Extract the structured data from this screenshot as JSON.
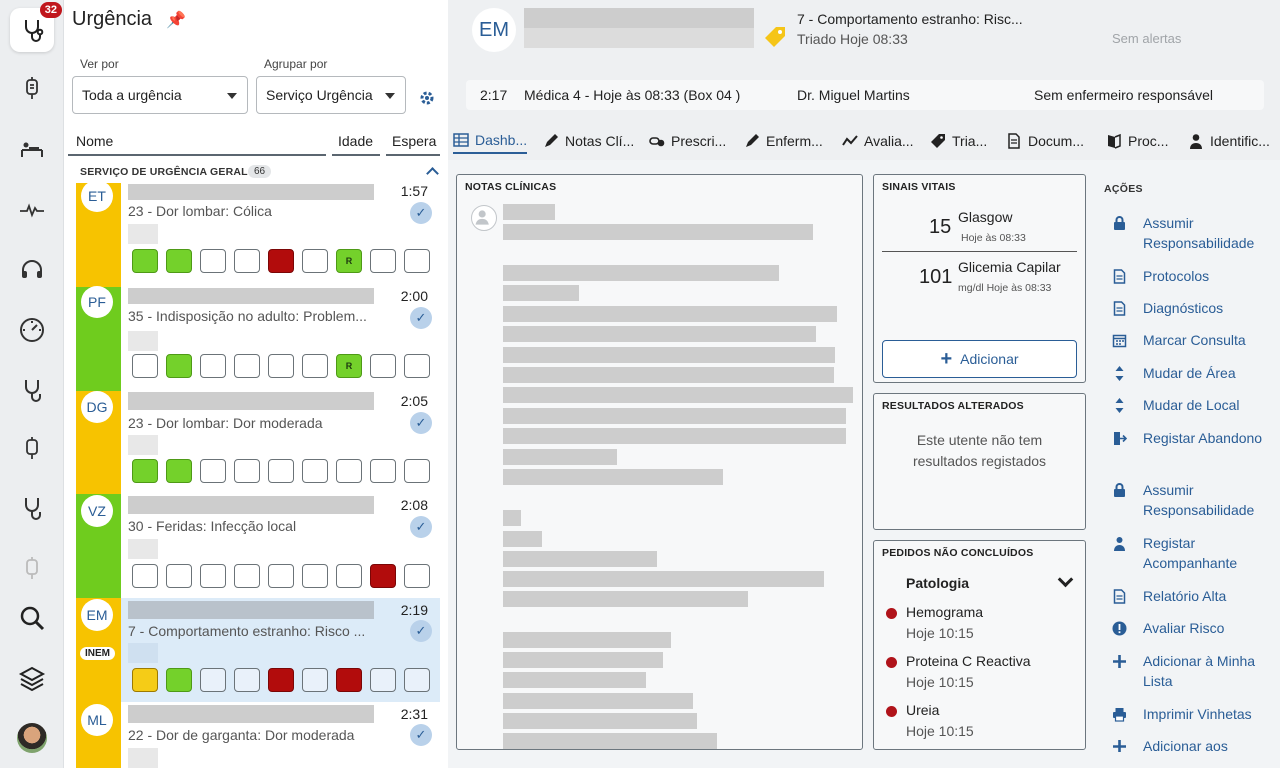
{
  "rail": {
    "badge": "32"
  },
  "list": {
    "title": "Urgência",
    "ver_por_label": "Ver por",
    "ver_por_value": "Toda a urgência",
    "agrupar_label": "Agrupar por",
    "agrupar_value": "Serviço Urgência",
    "col_nome": "Nome",
    "col_idade": "Idade",
    "col_espera": "Espera",
    "group_name": "SERVIÇO DE URGÊNCIA GERAL",
    "group_count": "66",
    "patients": [
      {
        "initials": "ET",
        "diagnosis": "23 - Dor lombar: Cólica",
        "wait": "1:57",
        "priority": "yellow",
        "boxes": [
          "g",
          "g",
          "",
          "",
          "r",
          "",
          "R",
          "",
          " "
        ]
      },
      {
        "initials": "PF",
        "diagnosis": "35 - Indisposição no adulto: Problem...",
        "wait": "2:00",
        "priority": "green",
        "boxes": [
          "",
          "g",
          "",
          "",
          "",
          "",
          "R",
          "",
          ""
        ]
      },
      {
        "initials": "DG",
        "diagnosis": "23 - Dor lombar: Dor moderada",
        "wait": "2:05",
        "priority": "yellow",
        "boxes": [
          "g",
          "g",
          "",
          "",
          "",
          "",
          "",
          "",
          ""
        ]
      },
      {
        "initials": "VZ",
        "diagnosis": "30 - Feridas: Infecção local",
        "wait": "2:08",
        "priority": "green",
        "boxes": [
          "",
          "",
          "",
          "",
          "",
          "",
          "",
          "r",
          ""
        ]
      },
      {
        "initials": "EM",
        "badge": "INEM",
        "diagnosis": "7 - Comportamento estranho: Risco ...",
        "wait": "2:19",
        "priority": "yellow",
        "boxes": [
          "y",
          "g",
          "e",
          "e",
          "r",
          "e",
          "r",
          "e",
          "e"
        ]
      },
      {
        "initials": "ML",
        "diagnosis": "22 - Dor de garganta: Dor moderada",
        "wait": "2:31",
        "priority": "yellow"
      }
    ],
    "box_r_label": "R"
  },
  "patient": {
    "initials": "EM",
    "complaint": "7 - Comportamento estranho: Risc...",
    "triage": "Triado Hoje 08:33",
    "alerts": "Sem alertas",
    "elapsed": "2:17",
    "location": "Médica 4 - Hoje às 08:33 (Box 04 )",
    "doctor": "Dr. Miguel Martins",
    "nurse": "Sem enfermeiro responsável"
  },
  "tabs": [
    "Dashb...",
    "Notas Clí...",
    "Prescri...",
    "Enferm...",
    "Avalia...",
    "Tria...",
    "Docum...",
    "Proc...",
    "Identific..."
  ],
  "notes": {
    "title": "NOTAS CLÍNICAS"
  },
  "vitals": {
    "title": "SINAIS VITAIS",
    "items": [
      {
        "value": "15",
        "name": "Glasgow",
        "sub": "Hoje às 08:33"
      },
      {
        "value": "101",
        "name": "Glicemia Capilar",
        "sub": "mg/dl Hoje às 08:33"
      }
    ],
    "add_label": "Adicionar"
  },
  "results": {
    "title": "RESULTADOS ALTERADOS",
    "empty_line1": "Este utente não tem",
    "empty_line2": "resultados registados"
  },
  "orders": {
    "title": "PEDIDOS NÃO CONCLUÍDOS",
    "group": "Patologia",
    "items": [
      {
        "name": "Hemograma",
        "time": "Hoje 10:15"
      },
      {
        "name": "Proteina C Reactiva",
        "time": "Hoje 10:15"
      },
      {
        "name": "Ureia",
        "time": "Hoje 10:15"
      }
    ]
  },
  "actions": {
    "title": "AÇÕES",
    "items": [
      {
        "label": "Assumir Responsabilidade",
        "icon": "lock-icon"
      },
      {
        "label": "Protocolos",
        "icon": "document-icon"
      },
      {
        "label": "Diagnósticos",
        "icon": "document-icon"
      },
      {
        "label": "Marcar Consulta",
        "icon": "calendar-icon"
      },
      {
        "label": "Mudar de Área",
        "icon": "sort-icon"
      },
      {
        "label": "Mudar de Local",
        "icon": "sort-icon"
      },
      {
        "label": "Registar Abandono",
        "icon": "exit-icon"
      },
      {
        "label": "Assumir Responsabilidade",
        "icon": "lock-icon"
      },
      {
        "label": "Registar Acompanhante",
        "icon": "person-icon"
      },
      {
        "label": "Relatório Alta",
        "icon": "document-icon"
      },
      {
        "label": "Avaliar Risco",
        "icon": "alert-icon"
      },
      {
        "label": "Adicionar à Minha Lista",
        "icon": "plus-icon"
      },
      {
        "label": "Imprimir Vinhetas",
        "icon": "printer-icon"
      },
      {
        "label": "Adicionar aos",
        "icon": "plus-icon"
      }
    ]
  },
  "colors": {
    "accent": "#2a5d96",
    "yellow": "#f7c300",
    "green": "#6fcc1e",
    "red": "#b20c0c",
    "badge": "#c0161c"
  }
}
